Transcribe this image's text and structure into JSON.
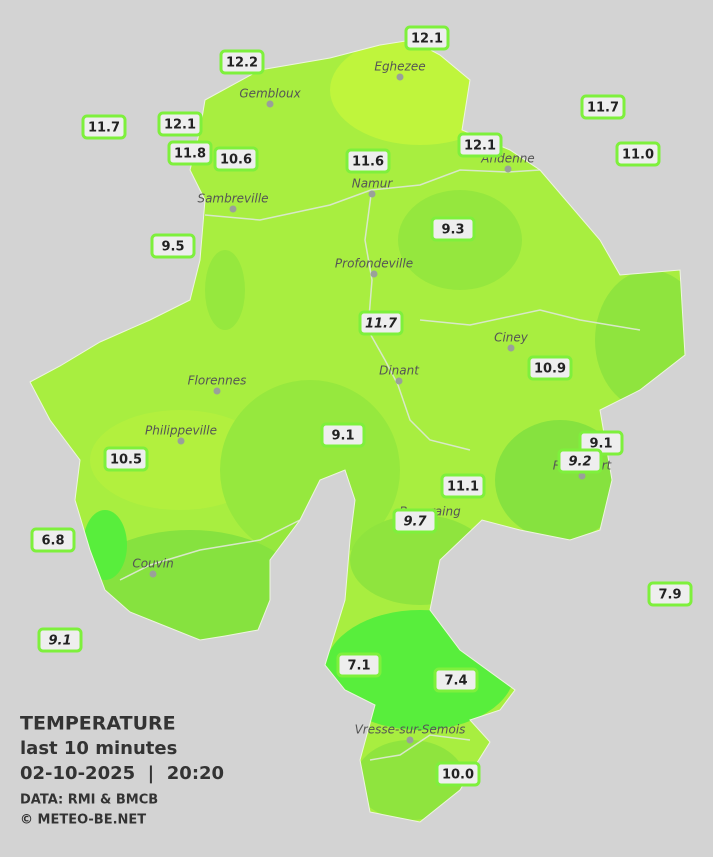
{
  "title": "TEMPERATURE",
  "subtitle": "last 10 minutes",
  "datetime": "02-10-2025  |  20:20",
  "source": "DATA: RMI & BMCB",
  "copyright": "© METEO-BE.NET",
  "cities": [
    "Eghezee",
    "Gembloux",
    "Andenne",
    "Namur",
    "Sambreville",
    "Profondeville",
    "Ciney",
    "Dinant",
    "Florennes",
    "Philippeville",
    "Rochefort",
    "Beauraing",
    "Couvin",
    "Vresse-sur-Semois"
  ],
  "stations": [
    "12.1",
    "12.2",
    "11.7",
    "12.1",
    "11.8",
    "10.6",
    "11.6",
    "12.1",
    "11.7",
    "11.0",
    "9.3",
    "9.5",
    "11.7",
    "10.9",
    "9.1",
    "10.5",
    "9.1",
    "9.2",
    "11.1",
    "9.7",
    "6.8",
    "7.9",
    "9.1",
    "7.1",
    "7.4",
    "10.0"
  ]
}
